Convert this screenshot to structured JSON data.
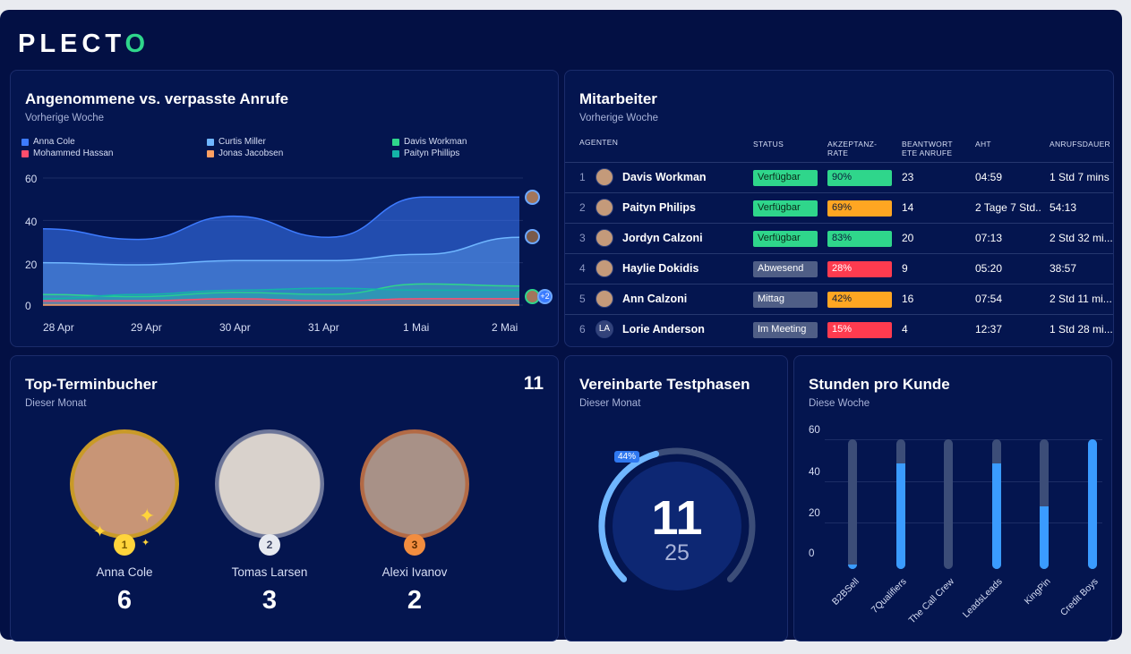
{
  "brand": {
    "logo_main": "PLECT",
    "logo_accent": "O"
  },
  "calls_chart": {
    "title": "Angenommene vs. verpasste Anrufe",
    "subtitle": "Vorherige Woche",
    "legend": [
      {
        "name": "Anna Cole",
        "color": "#3d7bff"
      },
      {
        "name": "Curtis Miller",
        "color": "#6fb6ff"
      },
      {
        "name": "Davis Workman",
        "color": "#2fd68b"
      },
      {
        "name": "Mohammed Hassan",
        "color": "#ff4d6d"
      },
      {
        "name": "Jonas Jacobsen",
        "color": "#ffa062"
      },
      {
        "name": "Paityn Phillips",
        "color": "#14b3a8"
      }
    ],
    "more_badge": "+2"
  },
  "chart_data": {
    "type": "area",
    "title": "Angenommene vs. verpasste Anrufe",
    "x": [
      "28 Apr",
      "29 Apr",
      "30 Apr",
      "31 Apr",
      "1 Mai",
      "2 Mai"
    ],
    "yticks": [
      "0",
      "20",
      "40",
      "60"
    ],
    "ylim": [
      0,
      60
    ],
    "series": [
      {
        "name": "Anna Cole",
        "values": [
          36,
          31,
          42,
          32,
          51,
          51
        ]
      },
      {
        "name": "Curtis Miller",
        "values": [
          20,
          19,
          21,
          21,
          24,
          32
        ]
      },
      {
        "name": "Davis Workman",
        "values": [
          5,
          4,
          6,
          5,
          10,
          9
        ]
      },
      {
        "name": "Paityn Phillips",
        "values": [
          3,
          5,
          7,
          8,
          7,
          7
        ]
      },
      {
        "name": "Mohammed Hassan",
        "values": [
          2,
          2,
          3,
          2,
          3,
          3
        ]
      },
      {
        "name": "Jonas Jacobsen",
        "values": [
          0,
          0,
          0,
          0,
          0,
          0
        ]
      }
    ]
  },
  "staff": {
    "title": "Mitarbeiter",
    "subtitle": "Vorherige Woche",
    "headers": {
      "agents": "AGENTEN",
      "status": "STATUS",
      "rate1": "AKZEPTANZ-",
      "rate2": "RATE",
      "ans1": "BEANTWORT",
      "ans2": "ETE ANRUFE",
      "aht": "AHT",
      "dur": "ANRUFSDAUER"
    },
    "rows": [
      {
        "n": "1",
        "name": "Davis Workman",
        "status": "Verfügbar",
        "status_color": "#2fd68b",
        "rate": "90%",
        "rate_color": "#2fd68b",
        "answered": "23",
        "aht": "04:59",
        "dur": "1 Std 7 mins"
      },
      {
        "n": "2",
        "name": "Paityn Philips",
        "status": "Verfügbar",
        "status_color": "#2fd68b",
        "rate": "69%",
        "rate_color": "#ffa622",
        "answered": "14",
        "aht": "2 Tage 7 Std..",
        "dur": "54:13"
      },
      {
        "n": "3",
        "name": "Jordyn Calzoni",
        "status": "Verfügbar",
        "status_color": "#2fd68b",
        "rate": "83%",
        "rate_color": "#2fd68b",
        "answered": "20",
        "aht": "07:13",
        "dur": "2 Std 32 mi..."
      },
      {
        "n": "4",
        "name": "Haylie Dokidis",
        "status": "Abwesend",
        "status_color": "#4f5e86",
        "rate": "28%",
        "rate_color": "#ff3b4f",
        "answered": "9",
        "aht": "05:20",
        "dur": "38:57"
      },
      {
        "n": "5",
        "name": "Ann Calzoni",
        "status": "Mittag",
        "status_color": "#4f5e86",
        "rate": "42%",
        "rate_color": "#ffa622",
        "answered": "16",
        "aht": "07:54",
        "dur": "2 Std 11 mi..."
      },
      {
        "n": "6",
        "name": "Lorie Anderson",
        "initials": "LA",
        "status": "Im Meeting",
        "status_color": "#4f5e86",
        "rate": "15%",
        "rate_color": "#ff3b4f",
        "answered": "4",
        "aht": "12:37",
        "dur": "1 Std 28 mi..."
      }
    ]
  },
  "top_bookers": {
    "title": "Top-Terminbucher",
    "subtitle": "Dieser Monat",
    "total": "11",
    "people": [
      {
        "rank": "1",
        "name": "Anna Cole",
        "value": "6"
      },
      {
        "rank": "2",
        "name": "Tomas Larsen",
        "value": "3"
      },
      {
        "rank": "3",
        "name": "Alexi Ivanov",
        "value": "2"
      }
    ]
  },
  "trials": {
    "title": "Vereinbarte Testphasen",
    "subtitle": "Dieser Monat",
    "value": "11",
    "target": "25",
    "percent_label": "44%",
    "percent": 44
  },
  "hours": {
    "title": "Stunden pro Kunde",
    "subtitle": "Diese Woche",
    "yticks": [
      "60",
      "40",
      "20",
      "0"
    ]
  },
  "bar_chart_data": {
    "type": "bar",
    "categories": [
      "B2BSell",
      "7Qualifiers",
      "The Call Crew",
      "LeadsLeads",
      "KingPin",
      "Credit Boys"
    ],
    "values": [
      2,
      49,
      0,
      49,
      29,
      60
    ],
    "max": [
      60,
      60,
      60,
      60,
      60,
      60
    ],
    "ylim": [
      0,
      60
    ]
  }
}
